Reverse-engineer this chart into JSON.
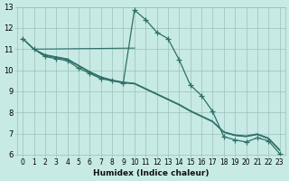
{
  "xlabel": "Humidex (Indice chaleur)",
  "background_color": "#c8eae5",
  "grid_color": "#9bbfba",
  "line_color": "#2d7068",
  "xlim": [
    -0.5,
    23.5
  ],
  "ylim": [
    6,
    13
  ],
  "xtick_labels": [
    "0",
    "1",
    "2",
    "3",
    "4",
    "5",
    "6",
    "7",
    "8",
    "9",
    "10",
    "11",
    "12",
    "13",
    "14",
    "15",
    "16",
    "17",
    "18",
    "19",
    "20",
    "21",
    "22",
    "23"
  ],
  "xticks": [
    0,
    1,
    2,
    3,
    4,
    5,
    6,
    7,
    8,
    9,
    10,
    11,
    12,
    13,
    14,
    15,
    16,
    17,
    18,
    19,
    20,
    21,
    22,
    23
  ],
  "yticks": [
    6,
    7,
    8,
    9,
    10,
    11,
    12,
    13
  ],
  "line_with_markers": {
    "x": [
      0,
      1,
      2,
      3,
      4,
      5,
      6,
      7,
      8,
      9,
      10,
      11,
      12,
      13,
      14,
      15,
      16,
      17,
      18,
      19,
      20,
      21,
      22,
      23
    ],
    "y": [
      11.5,
      11.0,
      10.65,
      10.55,
      10.45,
      10.1,
      9.85,
      9.6,
      9.5,
      9.4,
      12.85,
      12.4,
      11.8,
      11.5,
      10.5,
      9.3,
      8.8,
      8.05,
      6.85,
      6.7,
      6.6,
      6.8,
      6.65,
      6.05
    ]
  },
  "flat_line": {
    "x": [
      1,
      10
    ],
    "y": [
      11.0,
      11.05
    ]
  },
  "parallel_lines": [
    {
      "x": [
        0,
        1,
        2,
        3,
        4,
        5,
        6,
        7,
        8,
        9,
        10,
        11,
        12,
        13,
        14,
        15,
        16,
        17,
        18,
        19,
        20,
        21,
        22,
        23
      ],
      "y": [
        11.5,
        11.0,
        10.7,
        10.6,
        10.5,
        10.2,
        9.9,
        9.65,
        9.5,
        9.4,
        9.35,
        9.1,
        8.85,
        8.6,
        8.35,
        8.05,
        7.8,
        7.55,
        7.05,
        6.9,
        6.85,
        6.95,
        6.75,
        6.2
      ]
    },
    {
      "x": [
        0,
        1,
        2,
        3,
        4,
        5,
        6,
        7,
        8,
        9,
        10,
        11,
        12,
        13,
        14,
        15,
        16,
        17,
        18,
        19,
        20,
        21,
        22,
        23
      ],
      "y": [
        11.5,
        11.0,
        10.72,
        10.62,
        10.52,
        10.22,
        9.92,
        9.67,
        9.52,
        9.42,
        9.37,
        9.12,
        8.87,
        8.62,
        8.37,
        8.07,
        7.82,
        7.57,
        7.07,
        6.92,
        6.87,
        6.97,
        6.77,
        6.22
      ]
    },
    {
      "x": [
        0,
        1,
        2,
        3,
        4,
        5,
        6,
        7,
        8,
        9,
        10,
        11,
        12,
        13,
        14,
        15,
        16,
        17,
        18,
        19,
        20,
        21,
        22,
        23
      ],
      "y": [
        11.5,
        11.0,
        10.74,
        10.64,
        10.54,
        10.24,
        9.94,
        9.69,
        9.54,
        9.44,
        9.39,
        9.14,
        8.89,
        8.64,
        8.39,
        8.09,
        7.84,
        7.59,
        7.09,
        6.94,
        6.89,
        6.99,
        6.79,
        6.24
      ]
    }
  ]
}
